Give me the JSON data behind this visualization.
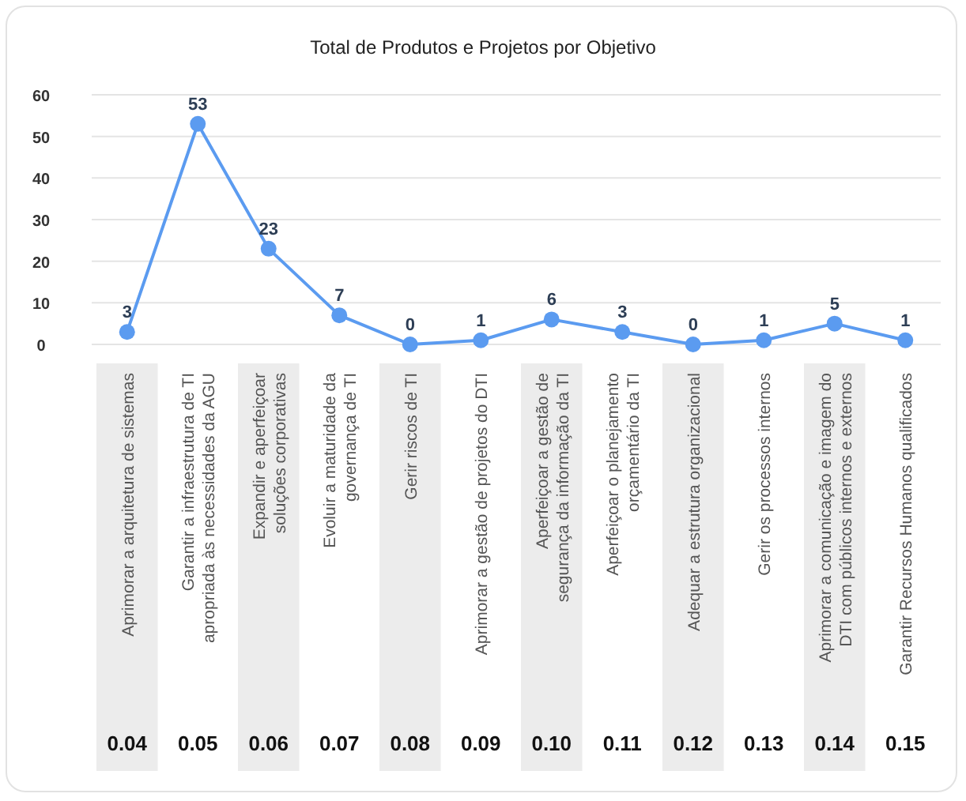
{
  "chart_data": {
    "type": "line",
    "title": "Total de Produtos e Projetos por Objetivo",
    "categories": [
      "Aprimorar a arquitetura de sistemas",
      "Garantir a infraestrutura de TI\napropriada às necessidades da AGU",
      "Expandir e aperfeiçoar\nsoluções corporativas",
      "Evoluir a maturidade da\ngovernança de TI",
      "Gerir riscos de TI",
      "Aprimorar a gestão de projetos do DTI",
      "Aperfeiçoar a gestão de\nsegurança da informação da TI",
      "Aperfeiçoar o planejamento\norçamentário da TI",
      "Adequar a estrutura organizacional",
      "Gerir os processos internos",
      "Aprimorar a comunicação e imagem do\nDTI com públicos internos e externos",
      "Garantir Recursos Humanos qualificados"
    ],
    "series": [
      {
        "color": "#5b9bf0",
        "values": [
          3,
          53,
          23,
          7,
          0,
          1,
          6,
          3,
          0,
          1,
          5,
          1
        ]
      }
    ],
    "ylim": [
      0,
      60
    ],
    "yticks": [
      0,
      10,
      20,
      30,
      40,
      50,
      60
    ],
    "grid": "y",
    "marker": "circle",
    "line_style": "solid",
    "data_labels": true,
    "annotations": [
      "0.04",
      "0.05",
      "0.06",
      "0.07",
      "0.08",
      "0.09",
      "0.10",
      "0.11",
      "0.12",
      "0.13",
      "0.14",
      "0.15"
    ]
  }
}
